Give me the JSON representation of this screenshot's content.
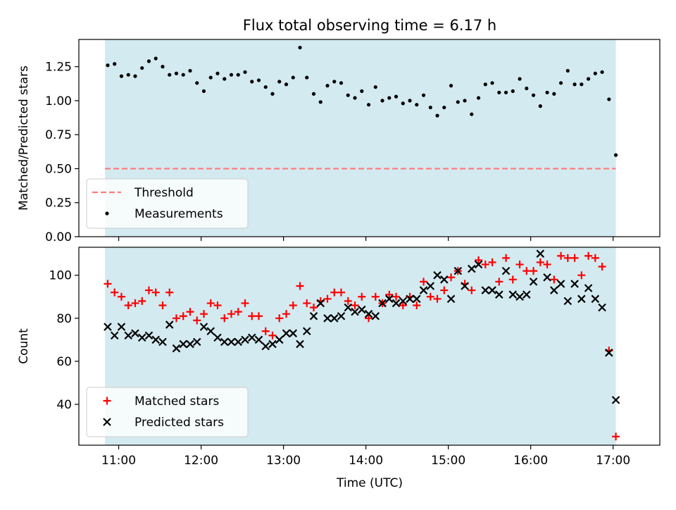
{
  "figure": {
    "title": "Flux total observing time = 6.17 h",
    "xlabel": "Time (UTC)",
    "x_ticks": [
      "11:00",
      "12:00",
      "13:00",
      "14:00",
      "15:00",
      "16:00",
      "17:00"
    ]
  },
  "colors": {
    "band": "#d3eaf0",
    "threshold": "#ff7b7b",
    "measurements": "#000000",
    "matched": "#ff0000",
    "predicted": "#000000"
  },
  "chart_data": [
    {
      "type": "scatter",
      "ylabel": "Matched/Predicted stars",
      "xlim": [
        "10:31",
        "17:34"
      ],
      "ylim": [
        0,
        1.45
      ],
      "y_ticks": [
        "0.00",
        "0.25",
        "0.50",
        "0.75",
        "1.00",
        "1.25"
      ],
      "shaded_span": [
        "10:50",
        "17:02"
      ],
      "threshold": {
        "name": "Threshold",
        "value": 0.5,
        "style": "dashed"
      },
      "legend": {
        "placement": "lower-left",
        "entries": [
          "Threshold",
          "Measurements"
        ]
      },
      "series": [
        {
          "name": "Measurements",
          "marker": "dot",
          "x": [
            "10:52",
            "10:57",
            "11:02",
            "11:07",
            "11:12",
            "11:17",
            "11:22",
            "11:27",
            "11:32",
            "11:37",
            "11:42",
            "11:47",
            "11:52",
            "11:57",
            "12:02",
            "12:07",
            "12:12",
            "12:17",
            "12:22",
            "12:27",
            "12:32",
            "12:37",
            "12:42",
            "12:47",
            "12:52",
            "12:57",
            "13:02",
            "13:07",
            "13:12",
            "13:17",
            "13:22",
            "13:27",
            "13:32",
            "13:37",
            "13:42",
            "13:47",
            "13:52",
            "13:57",
            "14:02",
            "14:07",
            "14:12",
            "14:17",
            "14:22",
            "14:27",
            "14:32",
            "14:37",
            "14:42",
            "14:47",
            "14:52",
            "14:57",
            "15:02",
            "15:07",
            "15:12",
            "15:17",
            "15:22",
            "15:27",
            "15:32",
            "15:37",
            "15:42",
            "15:47",
            "15:52",
            "15:57",
            "16:02",
            "16:07",
            "16:12",
            "16:17",
            "16:22",
            "16:27",
            "16:32",
            "16:37",
            "16:42",
            "16:47",
            "16:52",
            "16:57",
            "17:02"
          ],
          "y": [
            1.26,
            1.27,
            1.18,
            1.19,
            1.18,
            1.24,
            1.29,
            1.31,
            1.25,
            1.19,
            1.2,
            1.19,
            1.22,
            1.13,
            1.07,
            1.17,
            1.2,
            1.16,
            1.19,
            1.19,
            1.21,
            1.14,
            1.15,
            1.1,
            1.05,
            1.14,
            1.12,
            1.17,
            1.39,
            1.17,
            1.05,
            0.99,
            1.11,
            1.14,
            1.13,
            1.04,
            1.02,
            1.07,
            0.97,
            1.1,
            1.0,
            1.02,
            1.03,
            0.98,
            1.0,
            0.97,
            1.04,
            0.95,
            0.89,
            0.95,
            1.11,
            0.99,
            1.0,
            0.9,
            1.02,
            1.12,
            1.13,
            1.06,
            1.06,
            1.07,
            1.16,
            1.09,
            1.04,
            0.96,
            1.06,
            1.05,
            1.13,
            1.22,
            1.12,
            1.12,
            1.16,
            1.2,
            1.21,
            1.01,
            0.6
          ]
        }
      ]
    },
    {
      "type": "scatter",
      "ylabel": "Count",
      "xlim": [
        "10:31",
        "17:34"
      ],
      "ylim": [
        21,
        113
      ],
      "y_ticks": [
        "40",
        "60",
        "80",
        "100"
      ],
      "shaded_span": [
        "10:50",
        "17:02"
      ],
      "legend": {
        "placement": "lower-left",
        "entries": [
          "Matched stars",
          "Predicted stars"
        ]
      },
      "x": [
        "10:52",
        "10:57",
        "11:02",
        "11:07",
        "11:12",
        "11:17",
        "11:22",
        "11:27",
        "11:32",
        "11:37",
        "11:42",
        "11:47",
        "11:52",
        "11:57",
        "12:02",
        "12:07",
        "12:12",
        "12:17",
        "12:22",
        "12:27",
        "12:32",
        "12:37",
        "12:42",
        "12:47",
        "12:52",
        "12:57",
        "13:02",
        "13:07",
        "13:12",
        "13:17",
        "13:22",
        "13:27",
        "13:32",
        "13:37",
        "13:42",
        "13:47",
        "13:52",
        "13:57",
        "14:02",
        "14:07",
        "14:12",
        "14:17",
        "14:22",
        "14:27",
        "14:32",
        "14:37",
        "14:42",
        "14:47",
        "14:52",
        "14:57",
        "15:02",
        "15:07",
        "15:12",
        "15:17",
        "15:22",
        "15:27",
        "15:32",
        "15:37",
        "15:42",
        "15:47",
        "15:52",
        "15:57",
        "16:02",
        "16:07",
        "16:12",
        "16:17",
        "16:22",
        "16:27",
        "16:32",
        "16:37",
        "16:42",
        "16:47",
        "16:52",
        "16:57",
        "17:02"
      ],
      "series": [
        {
          "name": "Matched stars",
          "marker": "plus",
          "values": [
            96,
            92,
            90,
            86,
            87,
            88,
            93,
            92,
            86,
            92,
            80,
            81,
            83,
            79,
            82,
            87,
            86,
            80,
            82,
            83,
            87,
            81,
            81,
            74,
            72,
            80,
            82,
            86,
            95,
            87,
            85,
            88,
            89,
            92,
            92,
            88,
            86,
            90,
            80,
            90,
            87,
            91,
            90,
            86,
            90,
            86,
            97,
            90,
            89,
            93,
            99,
            102,
            96,
            93,
            107,
            105,
            106,
            97,
            108,
            98,
            105,
            102,
            102,
            106,
            105,
            98,
            109,
            108,
            108,
            100,
            109,
            108,
            104,
            65,
            25
          ]
        },
        {
          "name": "Predicted stars",
          "marker": "x",
          "values": [
            76,
            72,
            76,
            72,
            73,
            71,
            72,
            70,
            69,
            77,
            66,
            68,
            68,
            69,
            76,
            74,
            71,
            69,
            69,
            69,
            70,
            71,
            70,
            67,
            68,
            70,
            73,
            73,
            68,
            74,
            81,
            87,
            80,
            80,
            81,
            85,
            83,
            84,
            82,
            81,
            87,
            89,
            87,
            88,
            89,
            89,
            93,
            95,
            100,
            98,
            89,
            102,
            95,
            103,
            105,
            93,
            93,
            91,
            102,
            91,
            90,
            91,
            97,
            110,
            99,
            93,
            96,
            88,
            96,
            89,
            94,
            89,
            85,
            64,
            42
          ]
        }
      ]
    }
  ]
}
